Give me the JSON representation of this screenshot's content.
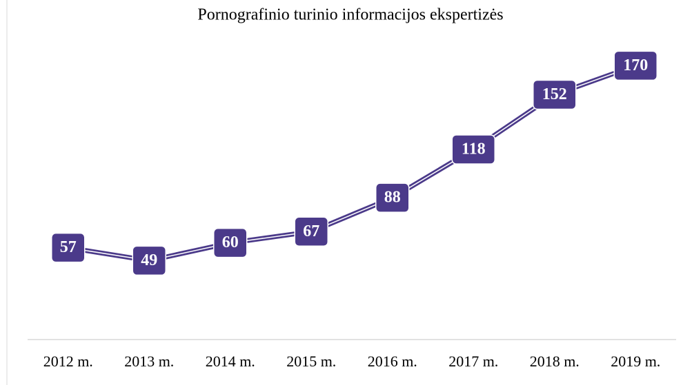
{
  "chart_data": {
    "type": "line",
    "title": "Pornografinio turinio informacijos ekspertizės",
    "categories": [
      "2012 m.",
      "2013 m.",
      "2014 m.",
      "2015 m.",
      "2016 m.",
      "2017 m.",
      "2018 m.",
      "2019 m."
    ],
    "values": [
      57,
      49,
      60,
      67,
      88,
      118,
      152,
      170
    ],
    "color": "#4b3a8a",
    "ylim": [
      0,
      180
    ]
  }
}
